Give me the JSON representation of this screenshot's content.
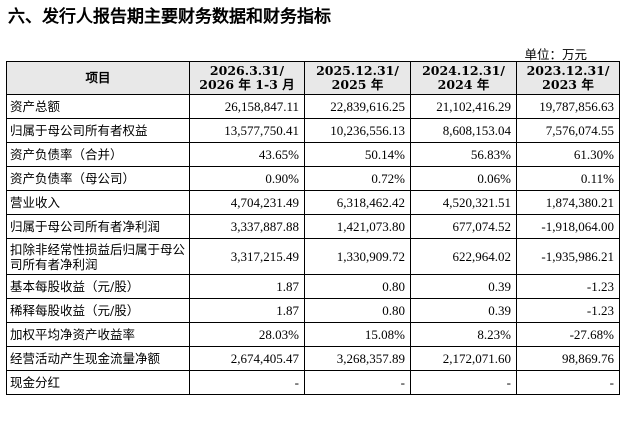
{
  "section_title": "六、发行人报告期主要财务数据和财务指标",
  "unit_label": "单位：万元",
  "table": {
    "headers": [
      {
        "line1": "项目",
        "line2": ""
      },
      {
        "line1": "2026.3.31/",
        "line2": "2026 年 1-3 月"
      },
      {
        "line1": "2025.12.31/",
        "line2": "2025 年"
      },
      {
        "line1": "2024.12.31/",
        "line2": "2024 年"
      },
      {
        "line1": "2023.12.31/",
        "line2": "2023 年"
      }
    ],
    "rows": [
      {
        "label": "资产总额",
        "values": [
          "26,158,847.11",
          "22,839,616.25",
          "21,102,416.29",
          "19,787,856.63"
        ]
      },
      {
        "label": "归属于母公司所有者权益",
        "values": [
          "13,577,750.41",
          "10,236,556.13",
          "8,608,153.04",
          "7,576,074.55"
        ]
      },
      {
        "label": "资产负债率（合并）",
        "values": [
          "43.65%",
          "50.14%",
          "56.83%",
          "61.30%"
        ]
      },
      {
        "label": "资产负债率（母公司）",
        "values": [
          "0.90%",
          "0.72%",
          "0.06%",
          "0.11%"
        ]
      },
      {
        "label": "营业收入",
        "values": [
          "4,704,231.49",
          "6,318,462.42",
          "4,520,321.51",
          "1,874,380.21"
        ]
      },
      {
        "label": "归属于母公司所有者净利润",
        "values": [
          "3,337,887.88",
          "1,421,073.80",
          "677,074.52",
          "-1,918,064.00"
        ]
      },
      {
        "label": "扣除非经常性损益后归属于母公司所有者净利润",
        "values": [
          "3,317,215.49",
          "1,330,909.72",
          "622,964.02",
          "-1,935,986.21"
        ]
      },
      {
        "label": "基本每股收益（元/股）",
        "values": [
          "1.87",
          "0.80",
          "0.39",
          "-1.23"
        ]
      },
      {
        "label": "稀释每股收益（元/股）",
        "values": [
          "1.87",
          "0.80",
          "0.39",
          "-1.23"
        ]
      },
      {
        "label": "加权平均净资产收益率",
        "values": [
          "28.03%",
          "15.08%",
          "8.23%",
          "-27.68%"
        ]
      },
      {
        "label": "经营活动产生现金流量净额",
        "values": [
          "2,674,405.47",
          "3,268,357.89",
          "2,172,071.60",
          "98,869.76"
        ]
      },
      {
        "label": "现金分红",
        "values": [
          "-",
          "-",
          "-",
          "-"
        ]
      }
    ]
  }
}
